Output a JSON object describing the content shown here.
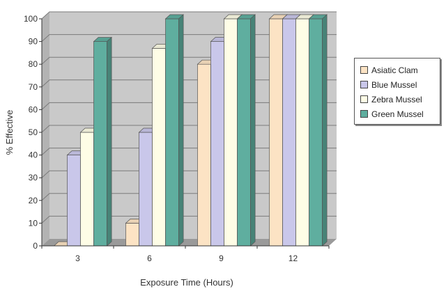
{
  "chart_data": {
    "type": "bar",
    "title": "",
    "xlabel": "Exposure Time (Hours)",
    "ylabel": "% Effective",
    "categories": [
      "3",
      "6",
      "9",
      "12"
    ],
    "ylim": [
      0,
      100
    ],
    "yticks": [
      "0",
      "10",
      "20",
      "30",
      "40",
      "50",
      "60",
      "70",
      "80",
      "90",
      "100"
    ],
    "grid": true,
    "legend_position": "right",
    "series": [
      {
        "name": "Asiatic Clam",
        "color": "#fce3c4",
        "values": [
          0,
          10,
          80,
          100
        ]
      },
      {
        "name": "Blue Mussel",
        "color": "#c9c7ea",
        "values": [
          40,
          50,
          90,
          100
        ]
      },
      {
        "name": "Zebra Mussel",
        "color": "#fefde6",
        "values": [
          50,
          87,
          100,
          100
        ]
      },
      {
        "name": "Green Mussel",
        "color": "#5fae9f",
        "values": [
          90,
          100,
          100,
          100
        ]
      }
    ]
  },
  "colors": {
    "plot_back": "#c9c9c9",
    "plot_side": "#b3b3b3",
    "floor": "#9a9a9a",
    "gridline": "#7a7a7a"
  }
}
